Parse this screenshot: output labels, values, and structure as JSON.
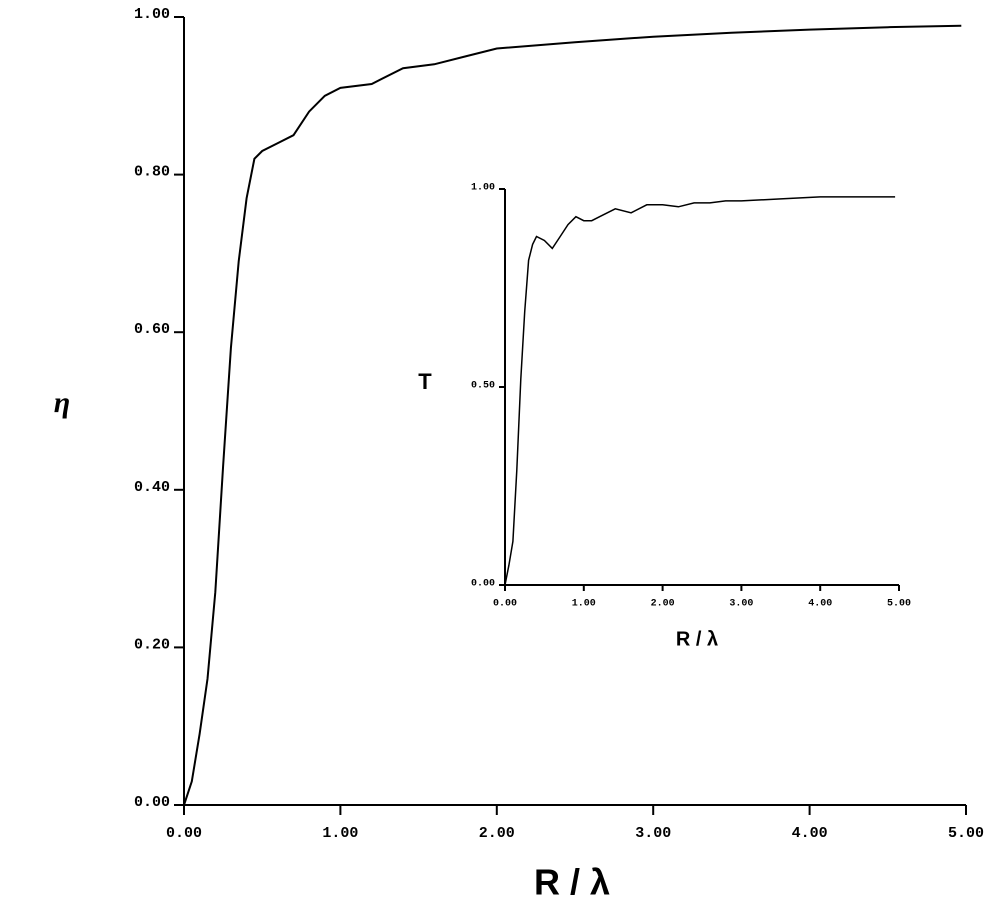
{
  "chart_data": [
    {
      "type": "line",
      "x_label": "R / λ",
      "y_label": "η",
      "color": "#000000",
      "x": [
        0,
        0.05,
        0.1,
        0.15,
        0.2,
        0.25,
        0.3,
        0.35,
        0.4,
        0.45,
        0.5,
        0.6,
        0.7,
        0.8,
        0.9,
        1.0,
        1.2,
        1.4,
        1.6,
        1.8,
        2.0,
        2.5,
        3.0,
        3.5,
        4.0,
        4.5,
        4.97
      ],
      "values": [
        0,
        0.03,
        0.09,
        0.16,
        0.27,
        0.43,
        0.58,
        0.69,
        0.77,
        0.82,
        0.83,
        0.84,
        0.85,
        0.88,
        0.9,
        0.91,
        0.915,
        0.935,
        0.94,
        0.95,
        0.96,
        0.968,
        0.975,
        0.98,
        0.984,
        0.987,
        0.989
      ],
      "xlim": [
        0,
        5
      ],
      "ylim": [
        0,
        1
      ],
      "xticks": [
        {
          "value": 0,
          "label": "0.00"
        },
        {
          "value": 1,
          "label": "1.00"
        },
        {
          "value": 2,
          "label": "2.00"
        },
        {
          "value": 3,
          "label": "3.00"
        },
        {
          "value": 4,
          "label": "4.00"
        },
        {
          "value": 5,
          "label": "5.00"
        }
      ],
      "yticks": [
        {
          "value": 0,
          "label": "0.00"
        },
        {
          "value": 0.2,
          "label": "0.20"
        },
        {
          "value": 0.4,
          "label": "0.40"
        },
        {
          "value": 0.6,
          "label": "0.60"
        },
        {
          "value": 0.8,
          "label": "0.80"
        },
        {
          "value": 1,
          "label": "1.00"
        }
      ]
    },
    {
      "type": "line",
      "x_label": "R / λ",
      "y_label": "T",
      "color": "#000000",
      "x": [
        0,
        0.05,
        0.1,
        0.15,
        0.2,
        0.25,
        0.3,
        0.35,
        0.4,
        0.5,
        0.6,
        0.7,
        0.8,
        0.9,
        1.0,
        1.1,
        1.2,
        1.4,
        1.6,
        1.8,
        2.0,
        2.2,
        2.4,
        2.6,
        2.8,
        3.0,
        3.5,
        4.0,
        4.5,
        4.95
      ],
      "values": [
        0,
        0.05,
        0.11,
        0.29,
        0.52,
        0.69,
        0.82,
        0.86,
        0.88,
        0.87,
        0.85,
        0.88,
        0.91,
        0.93,
        0.92,
        0.92,
        0.93,
        0.95,
        0.94,
        0.96,
        0.96,
        0.955,
        0.965,
        0.965,
        0.97,
        0.97,
        0.975,
        0.98,
        0.98,
        0.98
      ],
      "xlim": [
        0,
        5
      ],
      "ylim": [
        0,
        1
      ],
      "xticks": [
        {
          "value": 0,
          "label": "0.00"
        },
        {
          "value": 1,
          "label": "1.00"
        },
        {
          "value": 2,
          "label": "2.00"
        },
        {
          "value": 3,
          "label": "3.00"
        },
        {
          "value": 4,
          "label": "4.00"
        },
        {
          "value": 5,
          "label": "5.00"
        }
      ],
      "yticks": [
        {
          "value": 0,
          "label": "0.00"
        },
        {
          "value": 0.5,
          "label": "0.50"
        },
        {
          "value": 1,
          "label": "1.00"
        }
      ]
    }
  ]
}
